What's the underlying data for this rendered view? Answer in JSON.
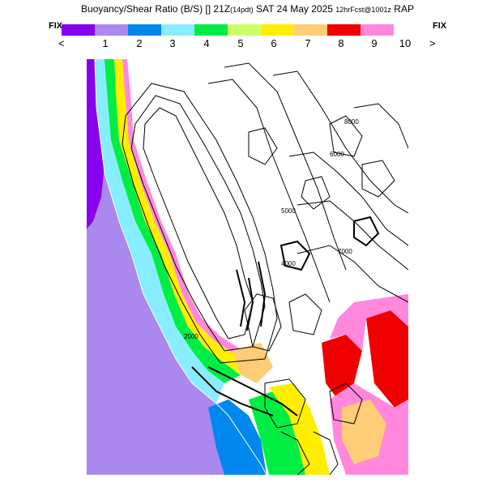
{
  "header": {
    "title_main": "Buoyancy/Shear Ratio (B/S) [] 21Z",
    "title_sub": "(14pdt)",
    "title_date": "SAT 24 May 2025",
    "title_fcst": "12hrFcst@1001z",
    "title_model": "RAP"
  },
  "controls": {
    "fix_left": "FIX",
    "fix_right": "FIX",
    "prev": "<",
    "next": ">"
  },
  "scale": {
    "labels": [
      "1",
      "2",
      "3",
      "4",
      "5",
      "6",
      "7",
      "8",
      "9",
      "10"
    ],
    "colors": [
      "#8800ee",
      "#aa88ee",
      "#0088ee",
      "#88eeff",
      "#00ee44",
      "#ccff66",
      "#ffee00",
      "#ffcc77",
      "#ee0000",
      "#ff88dd"
    ]
  },
  "map": {
    "contour_labels": [
      "8000",
      "6000",
      "5000",
      "7000",
      "4000",
      "2000"
    ]
  }
}
